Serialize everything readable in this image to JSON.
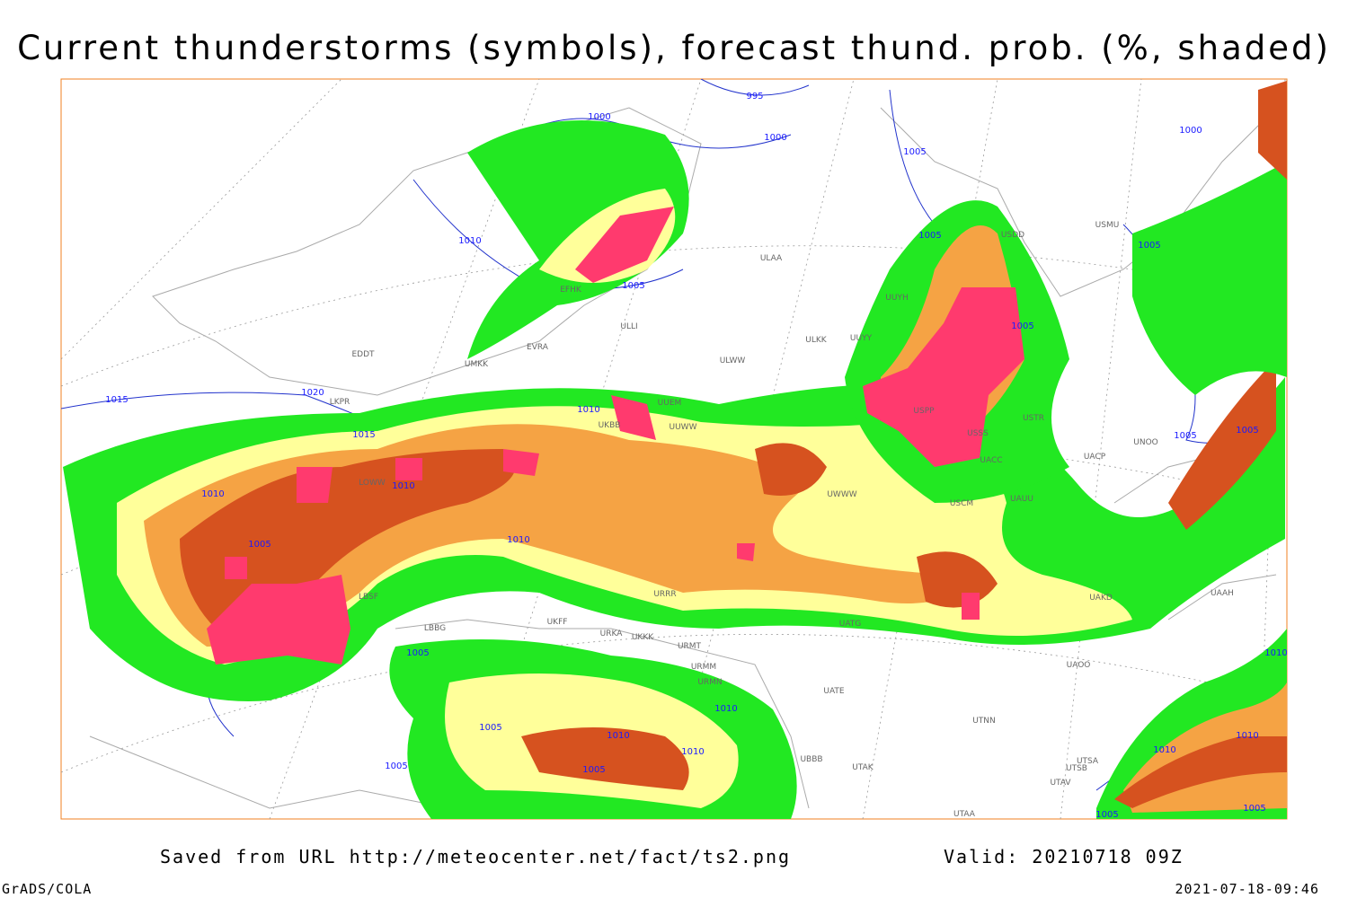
{
  "title": "Current thunderstorms (symbols), forecast thund. prob. (%, shaded)",
  "footer": {
    "source": "Saved from URL http://meteocenter.net/fact/ts2.png",
    "valid": "Valid: 20210718 09Z",
    "software": "GrADS/COLA",
    "timestamp": "2021-07-18-09:46"
  },
  "isobar_labels": [
    "995",
    "1000",
    "1000",
    "1005",
    "1010",
    "1005",
    "1005",
    "1005",
    "1000",
    "1015",
    "1020",
    "1015",
    "1010",
    "1010",
    "1010",
    "1005",
    "1010",
    "1005",
    "1005",
    "1005",
    "1005",
    "1005",
    "1005",
    "1010",
    "1005",
    "1010",
    "1010",
    "1010",
    "1010",
    "1010",
    "1005",
    "1005"
  ],
  "station_labels": [
    "EFHK",
    "EVRA",
    "UMKK",
    "EDDT",
    "LKPR",
    "LOWW",
    "UKBB",
    "UUWW",
    "UWWW",
    "ULAA",
    "ULLI",
    "UUYH",
    "UUYY",
    "ULKK",
    "USPP",
    "USSS",
    "USTR",
    "USCM",
    "UACC",
    "UAUU",
    "UNOO",
    "UACP",
    "UAKD",
    "UAOO",
    "UTNN",
    "UATG",
    "UATE",
    "UBBB",
    "UTAK",
    "UTSA",
    "UTSB",
    "UTAV",
    "UAAH",
    "USDD",
    "USMU",
    "UUEM",
    "URRR",
    "URMT",
    "URMM",
    "URMN",
    "UKFF",
    "URKA",
    "UKKK",
    "LBBG",
    "LBSF",
    "UTAA",
    "ULWW"
  ]
}
